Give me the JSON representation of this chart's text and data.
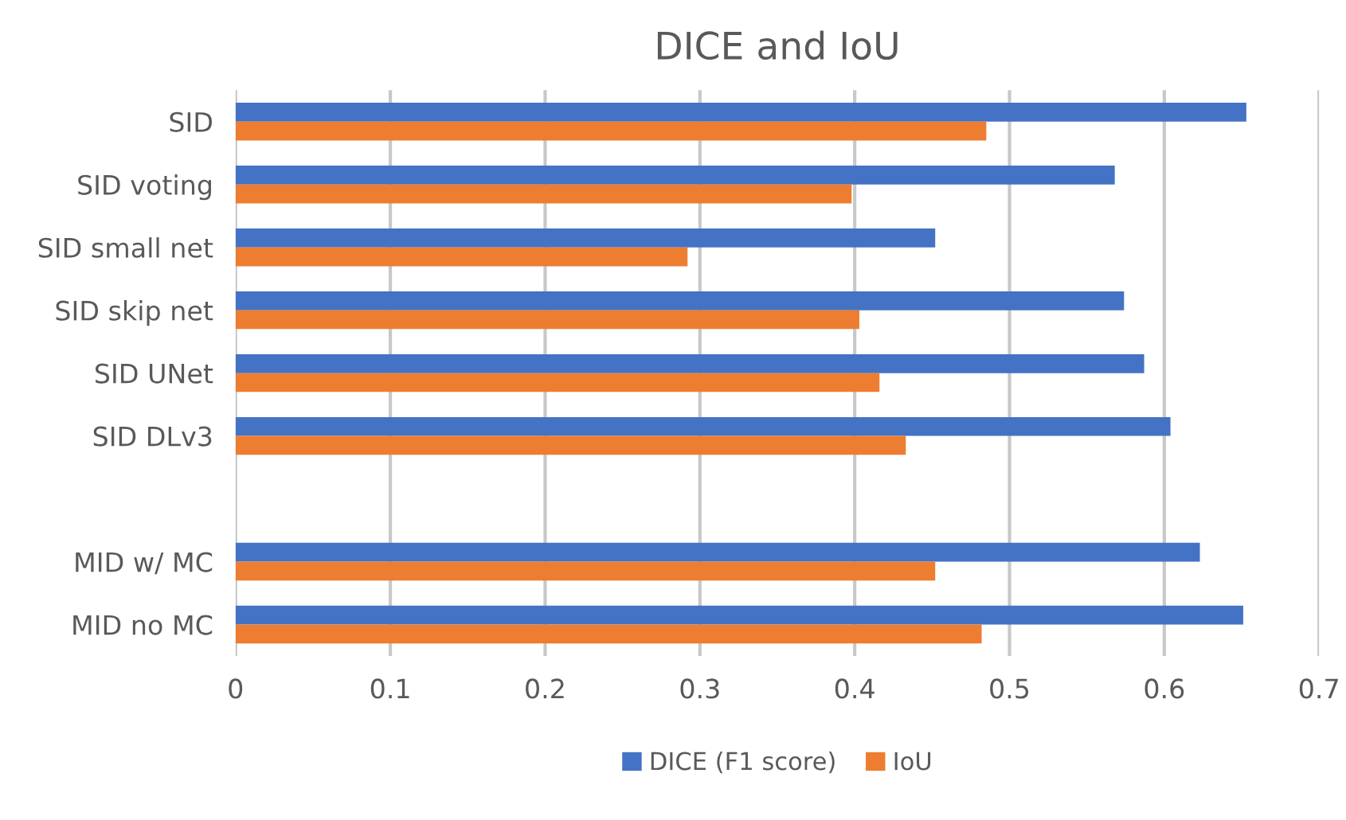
{
  "chart_data": {
    "type": "bar",
    "orientation": "horizontal",
    "title": "DICE and IoU",
    "categories": [
      "SID",
      "SID voting",
      "SID small net",
      "SID skip net",
      "SID UNet",
      "SID DLv3",
      null,
      "MID w/ MC",
      "MID no MC"
    ],
    "series": [
      {
        "name": "DICE (F1 score)",
        "color": "#4472c4",
        "values": [
          0.653,
          0.568,
          0.452,
          0.574,
          0.587,
          0.604,
          null,
          0.623,
          0.651
        ]
      },
      {
        "name": "IoU",
        "color": "#ed7d31",
        "values": [
          0.485,
          0.398,
          0.292,
          0.403,
          0.416,
          0.433,
          null,
          0.452,
          0.482
        ]
      }
    ],
    "xlim": [
      0,
      0.7
    ],
    "xticks": [
      0,
      0.1,
      0.2,
      0.3,
      0.4,
      0.5,
      0.6,
      0.7
    ],
    "grid": "x",
    "legend": "bottom"
  }
}
